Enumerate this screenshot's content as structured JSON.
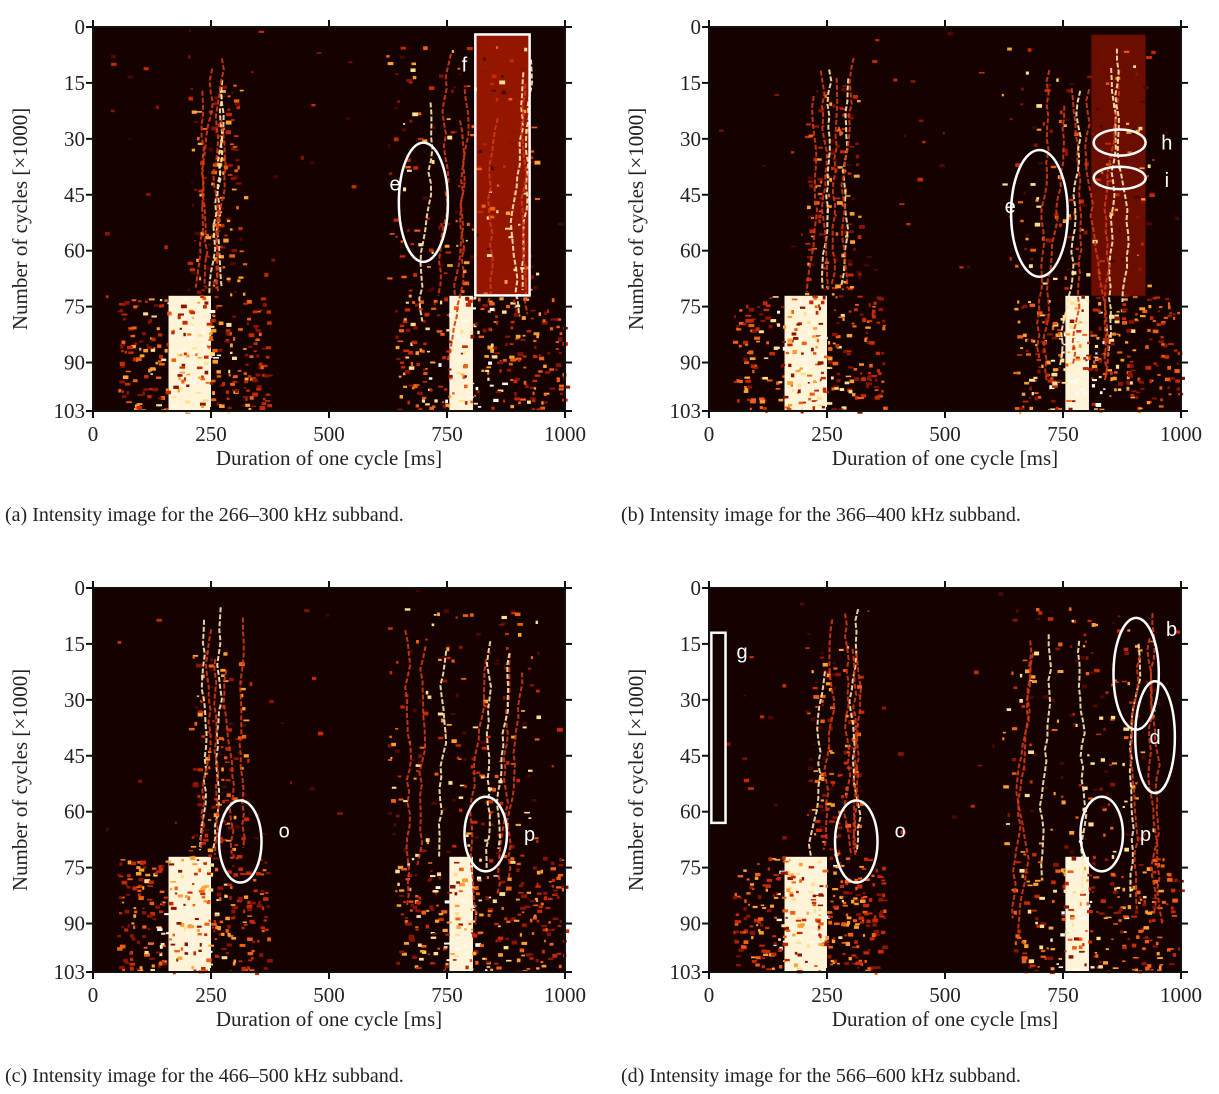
{
  "chart_data": [
    {
      "type": "heatmap",
      "caption": "(a) Intensity image for the 266–300 kHz subband.",
      "xlabel": "Duration of one cycle [ms]",
      "ylabel": "Number of cycles [×1000]",
      "xlim": [
        0,
        1000
      ],
      "ylim": [
        0,
        103
      ],
      "y_inverted": true,
      "xticks": [
        0,
        250,
        500,
        750,
        1000
      ],
      "yticks": [
        0,
        15,
        30,
        45,
        60,
        75,
        90,
        103
      ],
      "annotations": [
        {
          "label": "e"
        },
        {
          "label": "f"
        }
      ]
    },
    {
      "type": "heatmap",
      "caption": "(b) Intensity image for the 366–400 kHz subband.",
      "xlabel": "Duration of one cycle [ms]",
      "ylabel": "Number of cycles [×1000]",
      "xlim": [
        0,
        1000
      ],
      "ylim": [
        0,
        103
      ],
      "y_inverted": true,
      "xticks": [
        0,
        250,
        500,
        750,
        1000
      ],
      "yticks": [
        0,
        15,
        30,
        45,
        60,
        75,
        90,
        103
      ],
      "annotations": [
        {
          "label": "e"
        },
        {
          "label": "h"
        },
        {
          "label": "i"
        }
      ]
    },
    {
      "type": "heatmap",
      "caption": "(c) Intensity image for the 466–500 kHz subband.",
      "xlabel": "Duration of one cycle [ms]",
      "ylabel": "Number of cycles [×1000]",
      "xlim": [
        0,
        1000
      ],
      "ylim": [
        0,
        103
      ],
      "y_inverted": true,
      "xticks": [
        0,
        250,
        500,
        750,
        1000
      ],
      "yticks": [
        0,
        15,
        30,
        45,
        60,
        75,
        90,
        103
      ],
      "annotations": [
        {
          "label": "o"
        },
        {
          "label": "p"
        }
      ]
    },
    {
      "type": "heatmap",
      "caption": "(d) Intensity image for the 566–600 kHz subband.",
      "xlabel": "Duration of one cycle [ms]",
      "ylabel": "Number of cycles [×1000]",
      "xlim": [
        0,
        1000
      ],
      "ylim": [
        0,
        103
      ],
      "y_inverted": true,
      "xticks": [
        0,
        250,
        500,
        750,
        1000
      ],
      "yticks": [
        0,
        15,
        30,
        45,
        60,
        75,
        90,
        103
      ],
      "annotations": [
        {
          "label": "g"
        },
        {
          "label": "b"
        },
        {
          "label": "d"
        },
        {
          "label": "o"
        },
        {
          "label": "p"
        }
      ]
    }
  ]
}
